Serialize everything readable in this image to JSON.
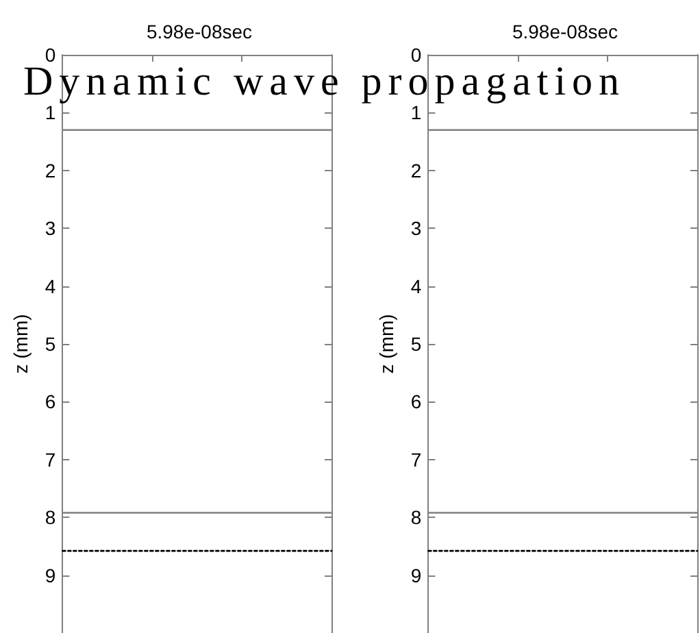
{
  "chart_data": [
    {
      "type": "line",
      "title": "5.98e-08sec",
      "ylabel": "z (mm)",
      "categories": [
        null,
        null,
        null,
        null
      ],
      "series": [
        {
          "color": "#808080",
          "values": [
            1.3,
            1.3,
            1.3,
            1.3
          ]
        },
        {
          "color": "#808080",
          "values": [
            7.92,
            7.92,
            7.92,
            7.92
          ]
        },
        {
          "color": "#000000",
          "line_style": "dotted",
          "values": [
            8.58,
            8.58,
            8.58,
            8.58
          ]
        }
      ],
      "ylim": [
        10,
        0
      ],
      "yticks": [
        0,
        1,
        2,
        3,
        4,
        5,
        6,
        7,
        8,
        9
      ],
      "tick_labels": "y",
      "marker": "none",
      "annotations": [
        "Dynamic wave propagation"
      ]
    },
    {
      "type": "line",
      "title": "5.98e-08sec",
      "ylabel": "z (mm)",
      "categories": [
        null,
        null,
        null,
        null
      ],
      "series": [
        {
          "color": "#808080",
          "values": [
            1.3,
            1.3,
            1.3,
            1.3
          ]
        },
        {
          "color": "#808080",
          "values": [
            7.92,
            7.92,
            7.92,
            7.92
          ]
        },
        {
          "color": "#000000",
          "line_style": "dotted",
          "values": [
            8.58,
            8.58,
            8.58,
            8.58
          ]
        }
      ],
      "ylim": [
        10,
        0
      ],
      "yticks": [
        0,
        1,
        2,
        3,
        4,
        5,
        6,
        7,
        8,
        9
      ],
      "tick_labels": "y",
      "marker": "none"
    }
  ]
}
